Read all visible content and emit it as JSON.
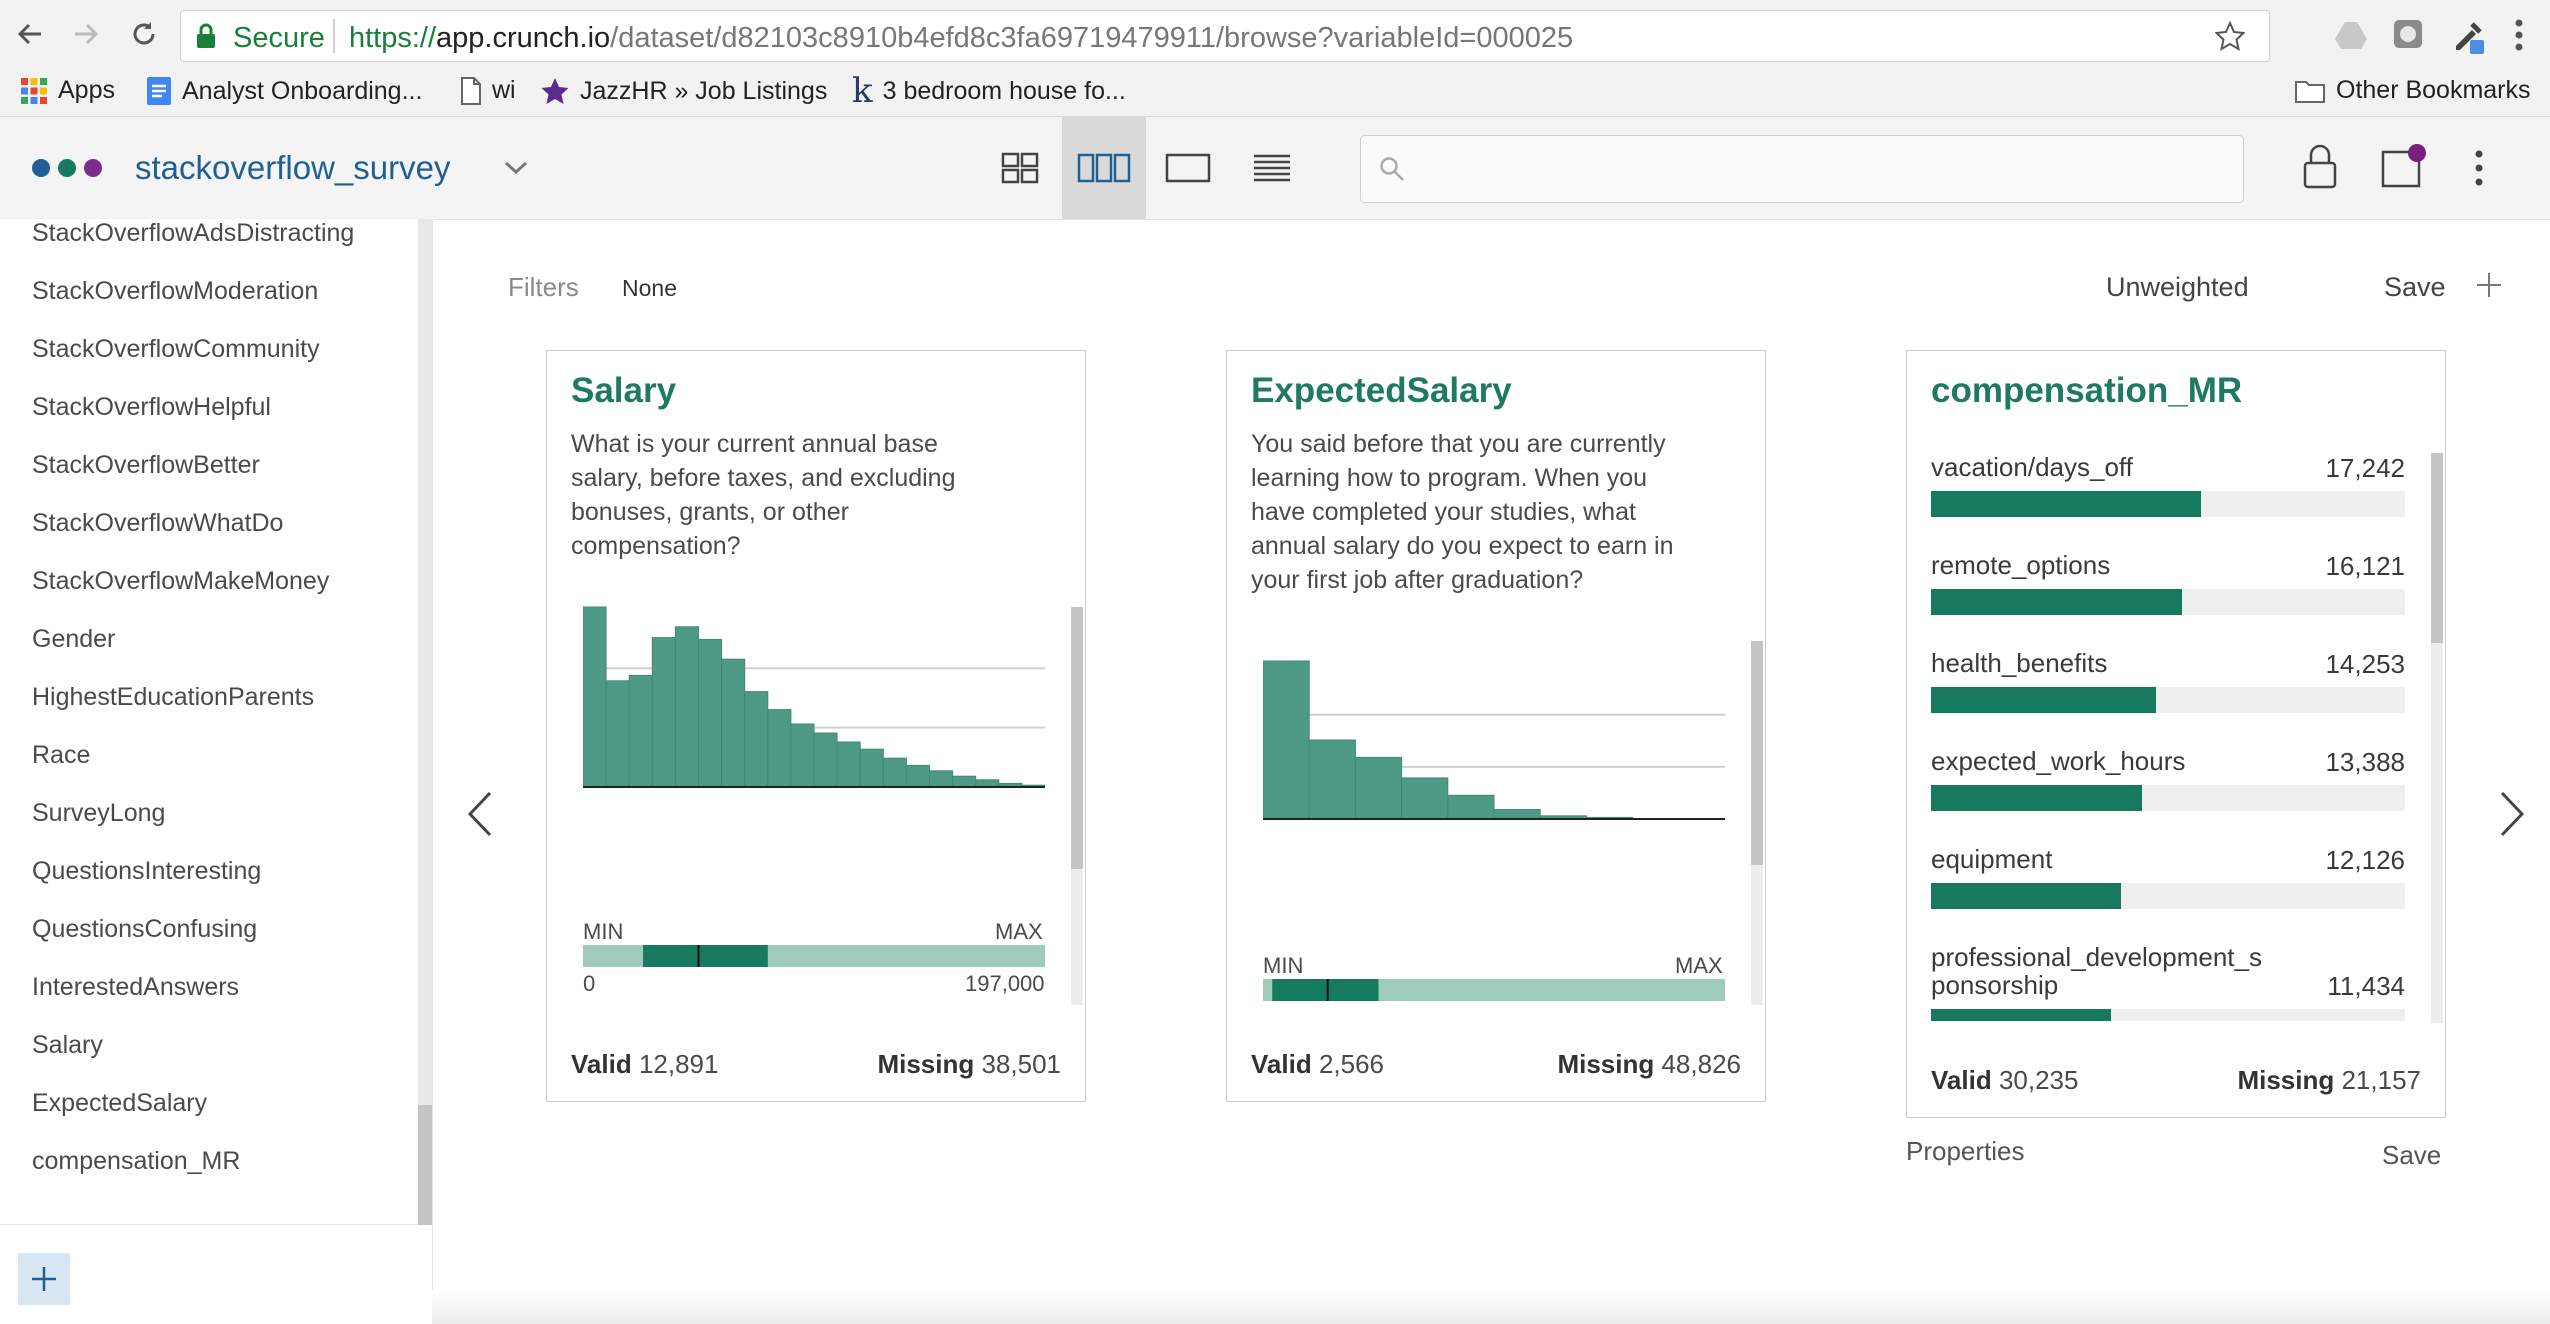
{
  "browser": {
    "secure_label": "Secure",
    "url_scheme": "https://",
    "url_host": "app.crunch.io",
    "url_path": "/dataset/d82103c8910b4efd8c3fa69719479911/browse?variableId=000025",
    "bookmarks": [
      "Apps",
      "Analyst Onboarding...",
      "wi",
      "JazzHR » Job Listings",
      "3 bedroom house fo..."
    ],
    "other_bookmarks": "Other Bookmarks"
  },
  "header": {
    "dataset_name": "stackoverflow_survey",
    "logo_dot_colors": [
      "#1f5f93",
      "#177a5f",
      "#7b2d8e"
    ],
    "views": [
      "grid-view",
      "card-view",
      "single-view",
      "list-view"
    ],
    "active_view": "card-view",
    "search_placeholder": ""
  },
  "sidebar": {
    "variables": [
      "StackOverflowAdsDistracting",
      "StackOverflowModeration",
      "StackOverflowCommunity",
      "StackOverflowHelpful",
      "StackOverflowBetter",
      "StackOverflowWhatDo",
      "StackOverflowMakeMoney",
      "Gender",
      "HighestEducationParents",
      "Race",
      "SurveyLong",
      "QuestionsInteresting",
      "QuestionsConfusing",
      "InterestedAnswers",
      "Salary",
      "ExpectedSalary",
      "compensation_MR"
    ]
  },
  "toolbar": {
    "filters_label": "Filters",
    "filters_value": "None",
    "weight_label": "Unweighted",
    "save_label": "Save"
  },
  "cards": [
    {
      "title": "Salary",
      "description": "What is your current annual base salary, before taxes, and excluding bonuses, grants, or other compensation?",
      "min_label": "MIN",
      "max_label": "MAX",
      "min_value": "0",
      "max_value": "197,000",
      "valid_label": "Valid",
      "valid_value": "12,891",
      "missing_label": "Missing",
      "missing_value": "38,501"
    },
    {
      "title": "ExpectedSalary",
      "description": "You said before that you are currently learning how to program. When you have completed your studies, what annual salary do you expect to earn in your first job after graduation?",
      "min_label": "MIN",
      "max_label": "MAX",
      "valid_label": "Valid",
      "valid_value": "2,566",
      "missing_label": "Missing",
      "missing_value": "48,826"
    },
    {
      "title": "compensation_MR",
      "valid_label": "Valid",
      "valid_value": "30,235",
      "missing_label": "Missing",
      "missing_value": "21,157"
    }
  ],
  "properties": {
    "label": "Properties",
    "save_label": "Save"
  },
  "chart_data": [
    {
      "type": "bar",
      "name": "Salary histogram",
      "values": [
        1.0,
        0.59,
        0.62,
        0.83,
        0.89,
        0.82,
        0.71,
        0.53,
        0.43,
        0.35,
        0.3,
        0.25,
        0.21,
        0.16,
        0.12,
        0.09,
        0.06,
        0.04,
        0.02,
        0.01
      ],
      "summary_box": {
        "q1": 0.13,
        "median": 0.25,
        "q3": 0.4
      },
      "xlim": [
        0,
        197000
      ]
    },
    {
      "type": "bar",
      "name": "ExpectedSalary histogram",
      "values": [
        1.0,
        0.5,
        0.39,
        0.26,
        0.15,
        0.06,
        0.02,
        0.01,
        0.0,
        0.0
      ],
      "summary_box": {
        "q1": 0.02,
        "median": 0.14,
        "q3": 0.25
      }
    },
    {
      "type": "bar",
      "name": "compensation_MR",
      "categories": [
        "vacation/days_off",
        "remote_options",
        "health_benefits",
        "expected_work_hours",
        "equipment",
        "professional_development_sponsorship"
      ],
      "labels": [
        "vacation/days_off",
        "remote_options",
        "health_benefits",
        "expected_work_hours",
        "equipment",
        "professional_development_s ponsorship"
      ],
      "values": [
        17242,
        16121,
        14253,
        13388,
        12126,
        11434
      ],
      "display_values": [
        "17,242",
        "16,121",
        "14,253",
        "13,388",
        "12,126",
        "11,434"
      ],
      "bar_fractions": [
        0.57,
        0.53,
        0.475,
        0.445,
        0.4,
        0.38
      ],
      "bar_color": "#177a5f"
    }
  ],
  "colors": {
    "histogram_fill": "#4e9a84",
    "histogram_edge": "#3f8a74",
    "range_track": "#9fcbbb",
    "range_box": "#177a5f",
    "title_green": "#1f7a62",
    "link_blue": "#1f5f93"
  }
}
